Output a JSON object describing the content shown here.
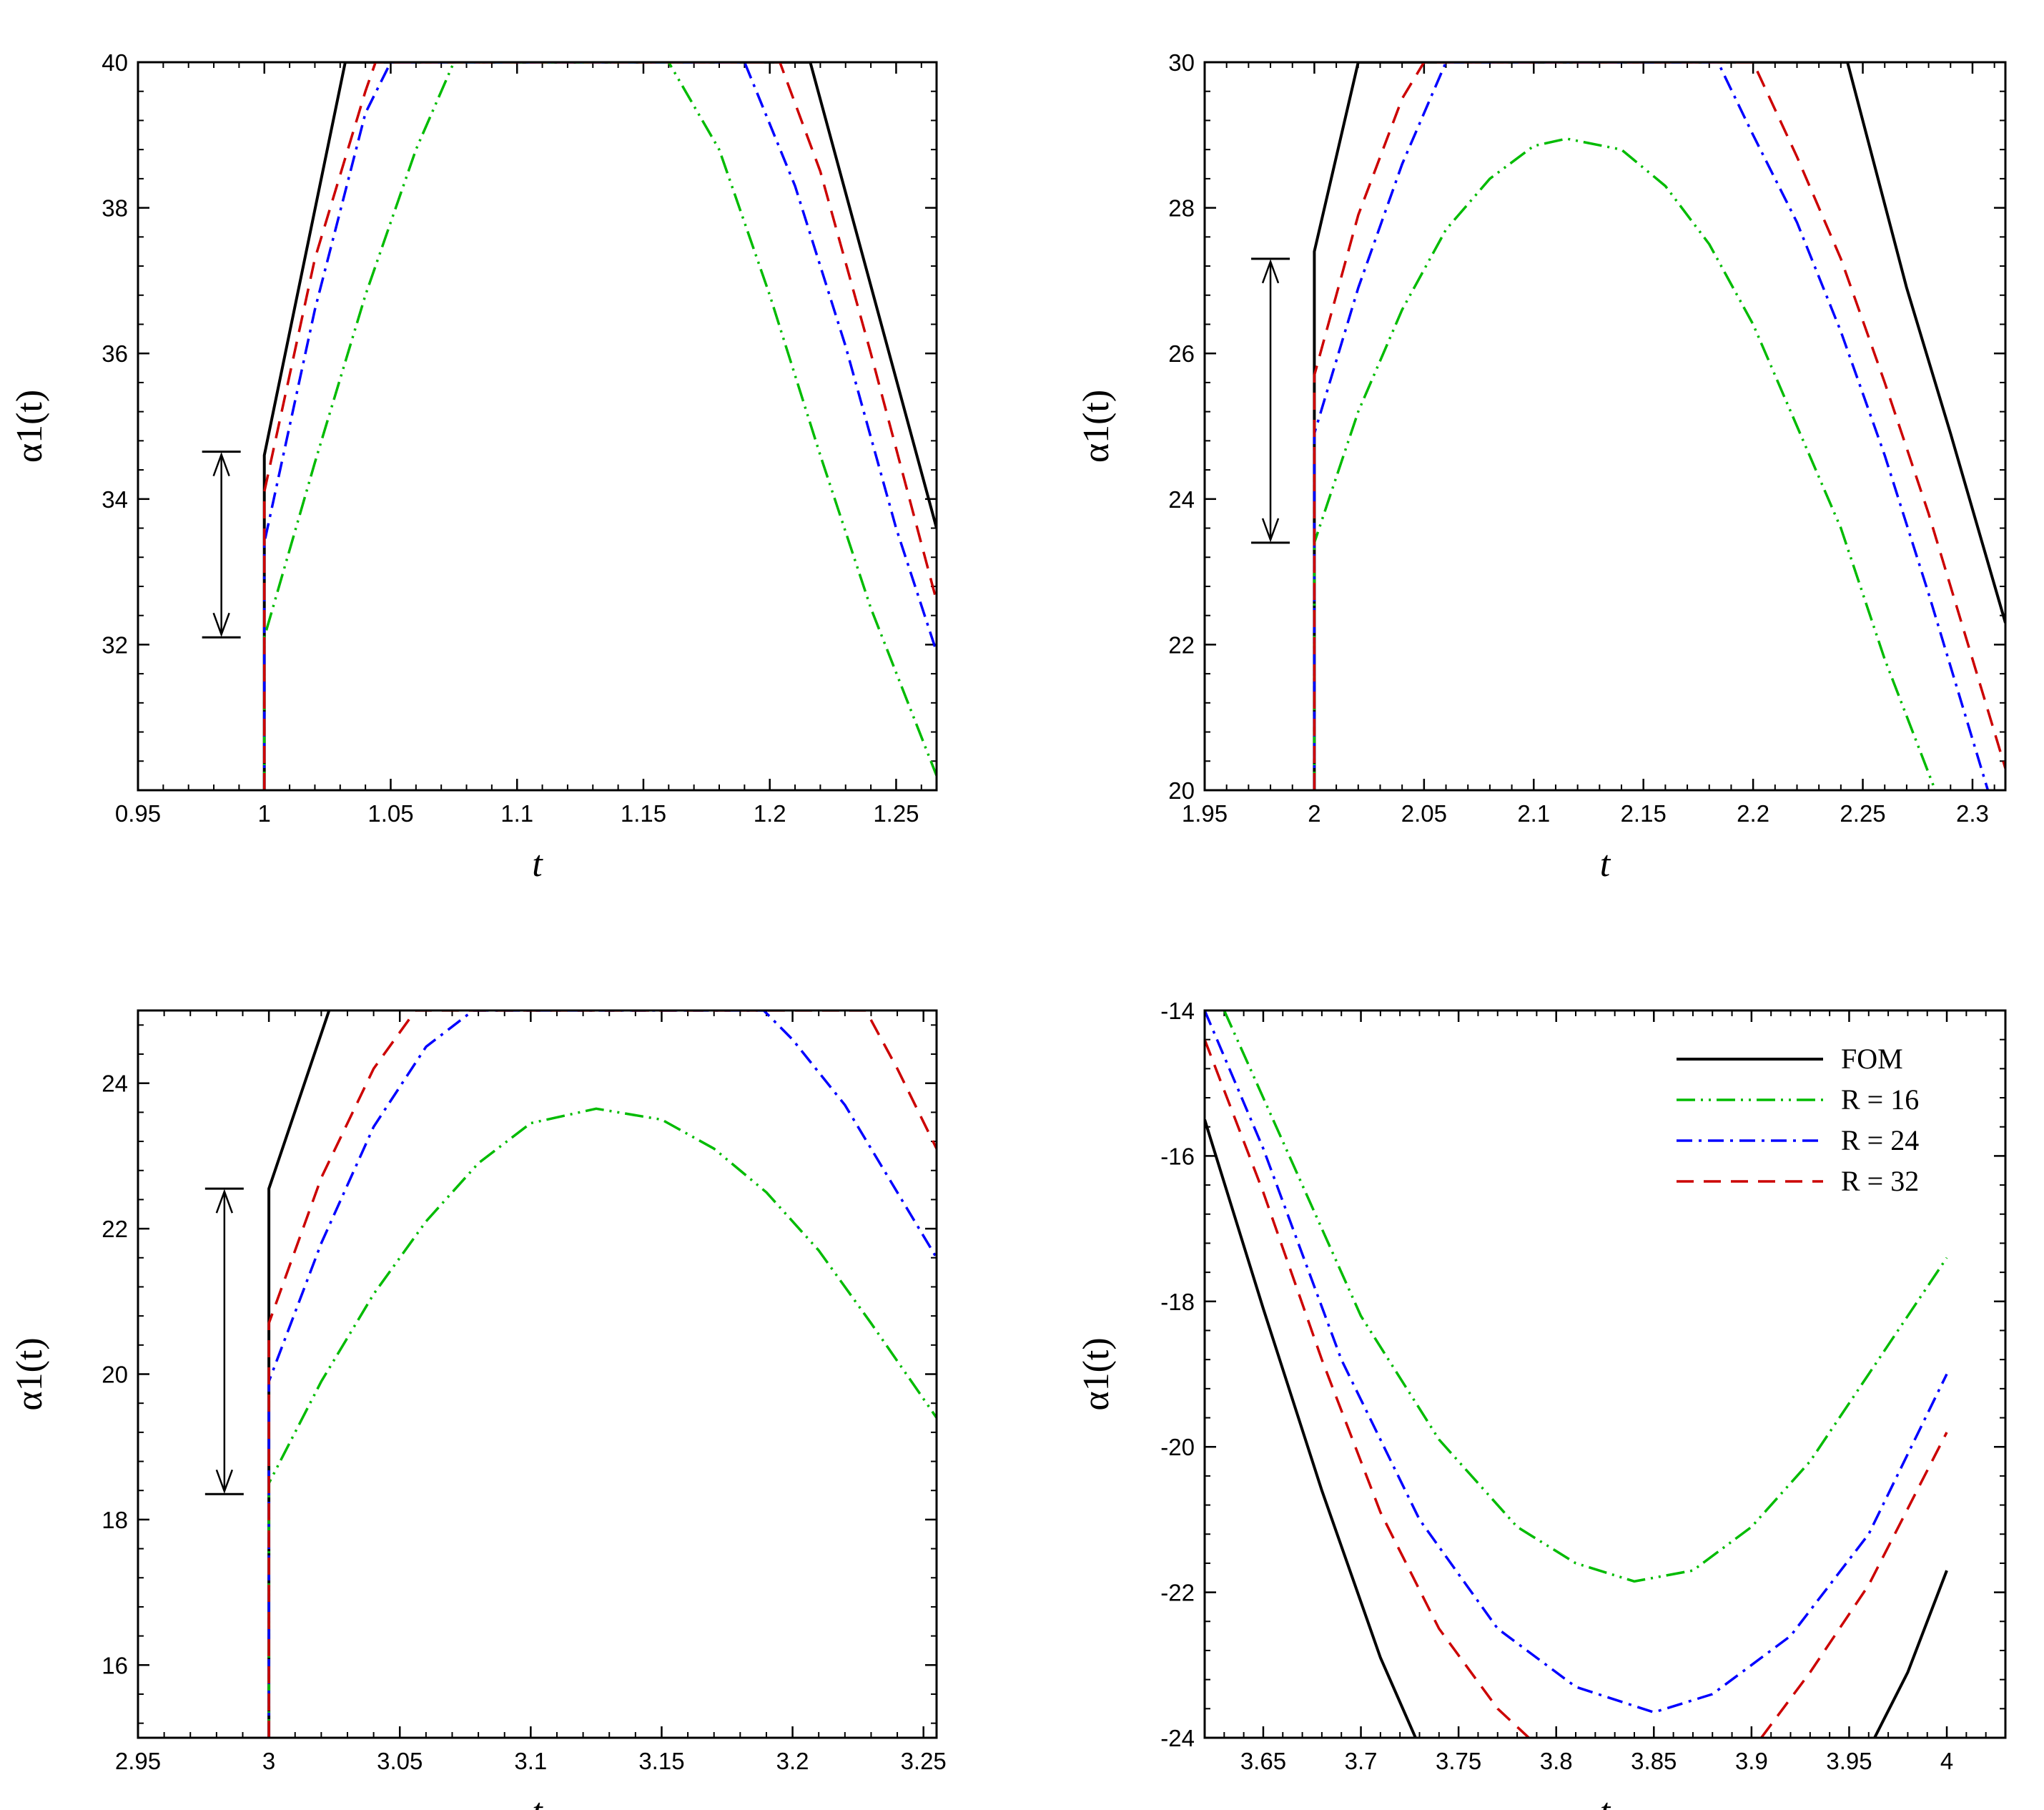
{
  "figure": {
    "legend": [
      {
        "label": "FOM",
        "color": "#000000",
        "style": "solid"
      },
      {
        "label": "R = 16",
        "color": "#00bb00",
        "style": "dashdotdot"
      },
      {
        "label": "R = 24",
        "color": "#0000ff",
        "style": "dashdot"
      },
      {
        "label": "R = 32",
        "color": "#cc0000",
        "style": "dashed"
      }
    ]
  },
  "chart_data": [
    {
      "id": "panel-1",
      "type": "line",
      "xlabel": "t",
      "ylabel": "α1(t)",
      "xlim": [
        0.95,
        1.266
      ],
      "ylim": [
        30,
        40
      ],
      "xticks": [
        0.95,
        1,
        1.05,
        1.1,
        1.15,
        1.2,
        1.25
      ],
      "xtick_labels": [
        "0.95",
        "1",
        "1.05",
        "1.1",
        "1.15",
        "1.2",
        "1.25"
      ],
      "yticks": [
        32,
        34,
        36,
        38,
        40
      ],
      "ytick_labels": [
        "32",
        "34",
        "36",
        "38",
        "40"
      ],
      "discontinuity_t": 1,
      "arrow": {
        "t": 0.983,
        "from": 32.1,
        "to": 34.65
      },
      "series": [
        {
          "name": "FOM",
          "color": "#000000",
          "style": "solid",
          "x": [
            1,
            1,
            1.032,
            1.216,
            1.266
          ],
          "y": [
            30,
            34.6,
            40,
            40,
            33.6
          ]
        },
        {
          "name": "R = 16",
          "color": "#00bb00",
          "style": "dashdotdot",
          "x": [
            1,
            1,
            1.02,
            1.04,
            1.06,
            1.075,
            1.16,
            1.18,
            1.2,
            1.22,
            1.24,
            1.266
          ],
          "y": [
            30,
            32.1,
            34.5,
            36.8,
            38.8,
            40,
            40,
            38.8,
            36.8,
            34.6,
            32.5,
            30.2
          ]
        },
        {
          "name": "R = 24",
          "color": "#0000ff",
          "style": "dashdot",
          "x": [
            1,
            1,
            1.02,
            1.04,
            1.05,
            1.19,
            1.21,
            1.23,
            1.25,
            1.266
          ],
          "y": [
            30,
            33.4,
            36.6,
            39.3,
            40,
            40,
            38.3,
            36.1,
            33.6,
            31.9
          ]
        },
        {
          "name": "R = 32",
          "color": "#cc0000",
          "style": "dashed",
          "x": [
            1,
            1,
            1.02,
            1.04,
            1.044,
            1.204,
            1.22,
            1.24,
            1.266
          ],
          "y": [
            30,
            34.1,
            37.3,
            39.6,
            40,
            40,
            38.5,
            36.0,
            32.6
          ]
        }
      ]
    },
    {
      "id": "panel-2",
      "type": "line",
      "xlabel": "t",
      "ylabel": "α1(t)",
      "xlim": [
        1.95,
        2.315
      ],
      "ylim": [
        20,
        30
      ],
      "xticks": [
        1.95,
        2,
        2.05,
        2.1,
        2.15,
        2.2,
        2.25,
        2.3
      ],
      "xtick_labels": [
        "1.95",
        "2",
        "2.05",
        "2.1",
        "2.15",
        "2.2",
        "2.25",
        "2.3"
      ],
      "yticks": [
        20,
        22,
        24,
        26,
        28,
        30
      ],
      "ytick_labels": [
        "20",
        "22",
        "24",
        "26",
        "28",
        "30"
      ],
      "discontinuity_t": 2,
      "arrow": {
        "t": 1.98,
        "from": 23.4,
        "to": 27.3
      },
      "series": [
        {
          "name": "FOM",
          "color": "#000000",
          "style": "solid",
          "x": [
            2,
            2,
            2.02,
            2.243,
            2.27,
            2.29,
            2.315
          ],
          "y": [
            20,
            27.4,
            30,
            30,
            26.9,
            24.9,
            22.3
          ]
        },
        {
          "name": "R = 16",
          "color": "#00bb00",
          "style": "dashdotdot",
          "x": [
            2,
            2,
            2.02,
            2.04,
            2.06,
            2.08,
            2.1,
            2.115,
            2.14,
            2.16,
            2.18,
            2.2,
            2.22,
            2.24,
            2.26,
            2.283
          ],
          "y": [
            20,
            23.4,
            25.2,
            26.6,
            27.7,
            28.4,
            28.85,
            28.95,
            28.8,
            28.3,
            27.5,
            26.4,
            25.0,
            23.6,
            21.8,
            20
          ]
        },
        {
          "name": "R = 24",
          "color": "#0000ff",
          "style": "dashdot",
          "x": [
            2,
            2,
            2.02,
            2.04,
            2.06,
            2.184,
            2.2,
            2.22,
            2.24,
            2.26,
            2.28,
            2.3,
            2.307
          ],
          "y": [
            20,
            24.9,
            26.9,
            28.6,
            30,
            30,
            29.0,
            27.8,
            26.3,
            24.6,
            22.7,
            20.7,
            20
          ]
        },
        {
          "name": "R = 32",
          "color": "#cc0000",
          "style": "dashed",
          "x": [
            2,
            2,
            2.02,
            2.04,
            2.05,
            2.2,
            2.22,
            2.24,
            2.26,
            2.28,
            2.3,
            2.315
          ],
          "y": [
            20,
            25.7,
            27.9,
            29.5,
            30,
            30,
            28.7,
            27.3,
            25.6,
            23.8,
            21.8,
            20.3
          ]
        }
      ]
    },
    {
      "id": "panel-3",
      "type": "line",
      "xlabel": "t",
      "ylabel": "α1(t)",
      "xlim": [
        2.95,
        3.255
      ],
      "ylim": [
        15,
        25
      ],
      "xticks": [
        2.95,
        3,
        3.05,
        3.1,
        3.15,
        3.2,
        3.25
      ],
      "xtick_labels": [
        "2.95",
        "3",
        "3.05",
        "3.1",
        "3.15",
        "3.2",
        "3.25"
      ],
      "yticks": [
        16,
        18,
        20,
        22,
        24
      ],
      "ytick_labels": [
        "16",
        "18",
        "20",
        "22",
        "24"
      ],
      "discontinuity_t": 3,
      "arrow": {
        "t": 2.983,
        "from": 18.35,
        "to": 22.55
      },
      "series": [
        {
          "name": "FOM",
          "color": "#000000",
          "style": "solid",
          "x": [
            3,
            3,
            3.023
          ],
          "y": [
            15,
            22.55,
            25
          ]
        },
        {
          "name": "R = 16",
          "color": "#00bb00",
          "style": "dashdotdot",
          "x": [
            3,
            3,
            3.02,
            3.04,
            3.06,
            3.08,
            3.1,
            3.125,
            3.15,
            3.17,
            3.19,
            3.21,
            3.23,
            3.255
          ],
          "y": [
            15,
            18.5,
            19.9,
            21.1,
            22.1,
            22.9,
            23.45,
            23.65,
            23.5,
            23.1,
            22.5,
            21.7,
            20.7,
            19.4
          ]
        },
        {
          "name": "R = 24",
          "color": "#0000ff",
          "style": "dashdot",
          "x": [
            3,
            3,
            3.02,
            3.04,
            3.06,
            3.078,
            3.189,
            3.2,
            3.22,
            3.24,
            3.255
          ],
          "y": [
            15,
            19.9,
            21.8,
            23.4,
            24.5,
            25,
            25,
            24.6,
            23.7,
            22.5,
            21.6
          ]
        },
        {
          "name": "R = 32",
          "color": "#cc0000",
          "style": "dashed",
          "x": [
            3,
            3,
            3.02,
            3.04,
            3.056,
            3.228,
            3.24,
            3.255
          ],
          "y": [
            15,
            20.7,
            22.7,
            24.2,
            25,
            25,
            24.2,
            23.1
          ]
        }
      ]
    },
    {
      "id": "panel-4",
      "type": "line",
      "xlabel": "t",
      "ylabel": "α1(t)",
      "xlim": [
        3.62,
        4.03
      ],
      "ylim": [
        -24,
        -14
      ],
      "xticks": [
        3.65,
        3.7,
        3.75,
        3.8,
        3.85,
        3.9,
        3.95,
        4
      ],
      "xtick_labels": [
        "3.65",
        "3.7",
        "3.75",
        "3.8",
        "3.85",
        "3.9",
        "3.95",
        "4"
      ],
      "yticks": [
        -24,
        -22,
        -20,
        -18,
        -16,
        -14
      ],
      "ytick_labels": [
        "-24",
        "-22",
        "-20",
        "-18",
        "-16",
        "-14"
      ],
      "legend_position": "top-right",
      "series": [
        {
          "name": "FOM",
          "color": "#000000",
          "style": "solid",
          "x": [
            3.62,
            3.65,
            3.68,
            3.71,
            3.728
          ],
          "y": [
            -15.5,
            -18.1,
            -20.6,
            -22.9,
            -24
          ],
          "x2": [
            3.963,
            3.98,
            4
          ],
          "y2": [
            -24,
            -23.1,
            -21.7
          ]
        },
        {
          "name": "R = 16",
          "color": "#00bb00",
          "style": "dashdotdot",
          "x": [
            3.63,
            3.66,
            3.7,
            3.74,
            3.78,
            3.81,
            3.84,
            3.87,
            3.9,
            3.93,
            3.96,
            4
          ],
          "y": [
            -14,
            -15.8,
            -18.2,
            -19.9,
            -21.1,
            -21.6,
            -21.85,
            -21.7,
            -21.1,
            -20.2,
            -19.0,
            -17.4
          ]
        },
        {
          "name": "R = 24",
          "color": "#0000ff",
          "style": "dashdot",
          "x": [
            3.62,
            3.65,
            3.69,
            3.73,
            3.77,
            3.81,
            3.85,
            3.88,
            3.92,
            3.96,
            4
          ],
          "y": [
            -14,
            -15.9,
            -18.8,
            -21.0,
            -22.5,
            -23.3,
            -23.65,
            -23.4,
            -22.6,
            -21.2,
            -19.0
          ]
        },
        {
          "name": "R = 32",
          "color": "#cc0000",
          "style": "dashed",
          "x": [
            3.62,
            3.65,
            3.68,
            3.71,
            3.74,
            3.77,
            3.786
          ],
          "y": [
            -14.4,
            -16.5,
            -18.8,
            -20.9,
            -22.5,
            -23.6,
            -24
          ],
          "x2": [
            3.905,
            3.93,
            3.96,
            4
          ],
          "y2": [
            -24,
            -23.1,
            -21.9,
            -19.8
          ]
        }
      ]
    }
  ]
}
